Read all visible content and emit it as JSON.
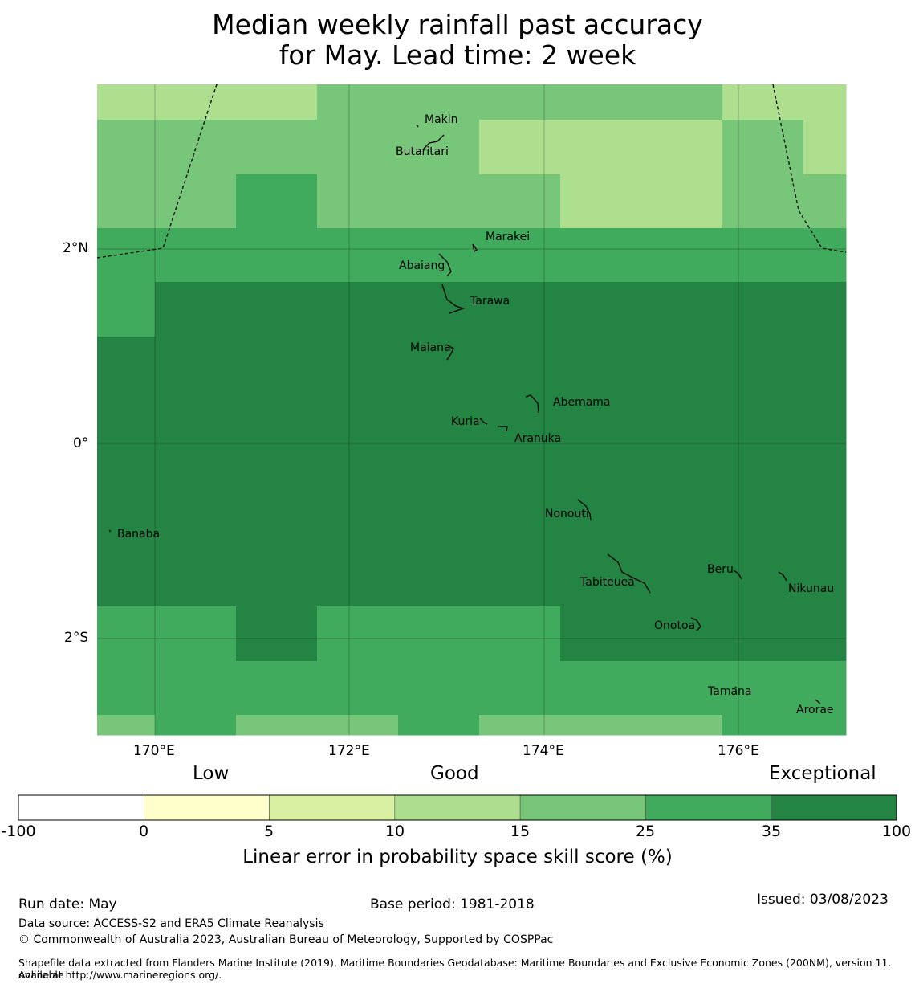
{
  "title_line1": "Median weekly rainfall past accuracy",
  "title_line2": "for May. Lead time: 2 week",
  "map": {
    "lon_ticks": [
      "170°E",
      "172°E",
      "174°E",
      "176°E"
    ],
    "lat_ticks": [
      "2°N",
      "0°",
      "2°S"
    ],
    "place_labels": [
      "Makin",
      "Butaritari",
      "Marakei",
      "Abaiang",
      "Tarawa",
      "Maiana",
      "Abemama",
      "Kuria",
      "Aranuka",
      "Nonouti",
      "Banaba",
      "Beru",
      "Tabiteuea",
      "Nikunau",
      "Onotoa",
      "Tamana",
      "Arorae"
    ],
    "cell_colors": {
      "10-15": "#addf8e",
      "15-25": "#78c679",
      "25-35": "#41ab5d",
      "35-100": "#238443"
    }
  },
  "legend": {
    "category_labels": [
      "Low",
      "Good",
      "Exceptional"
    ],
    "tick_labels": [
      "-100",
      "0",
      "5",
      "10",
      "15",
      "25",
      "35",
      "100"
    ],
    "colors": [
      "#ffffff",
      "#ffffcc",
      "#d9f0a3",
      "#addd8e",
      "#78c679",
      "#41ab5d",
      "#238443"
    ],
    "title": "Linear error in probability space skill score (%)"
  },
  "footer": {
    "run_date": "Run date: May",
    "base_period": "Base period: 1981-2018",
    "issued": "Issued: 03/08/2023",
    "data_source": "Data source: ACCESS-S2 and ERA5 Climate Reanalysis",
    "copyright": "© Commonwealth of Australia 2023, Australian Bureau of Meteorology, Supported by COSPPac",
    "shapefile_line1": "Shapefile data extracted from Flanders Marine Institute (2019), Maritime Boundaries Geodatabase: Maritime Boundaries and Exclusive Economic Zones (200NM), version 11. Available",
    "shapefile_line2": "online at http://www.marineregions.org/."
  }
}
